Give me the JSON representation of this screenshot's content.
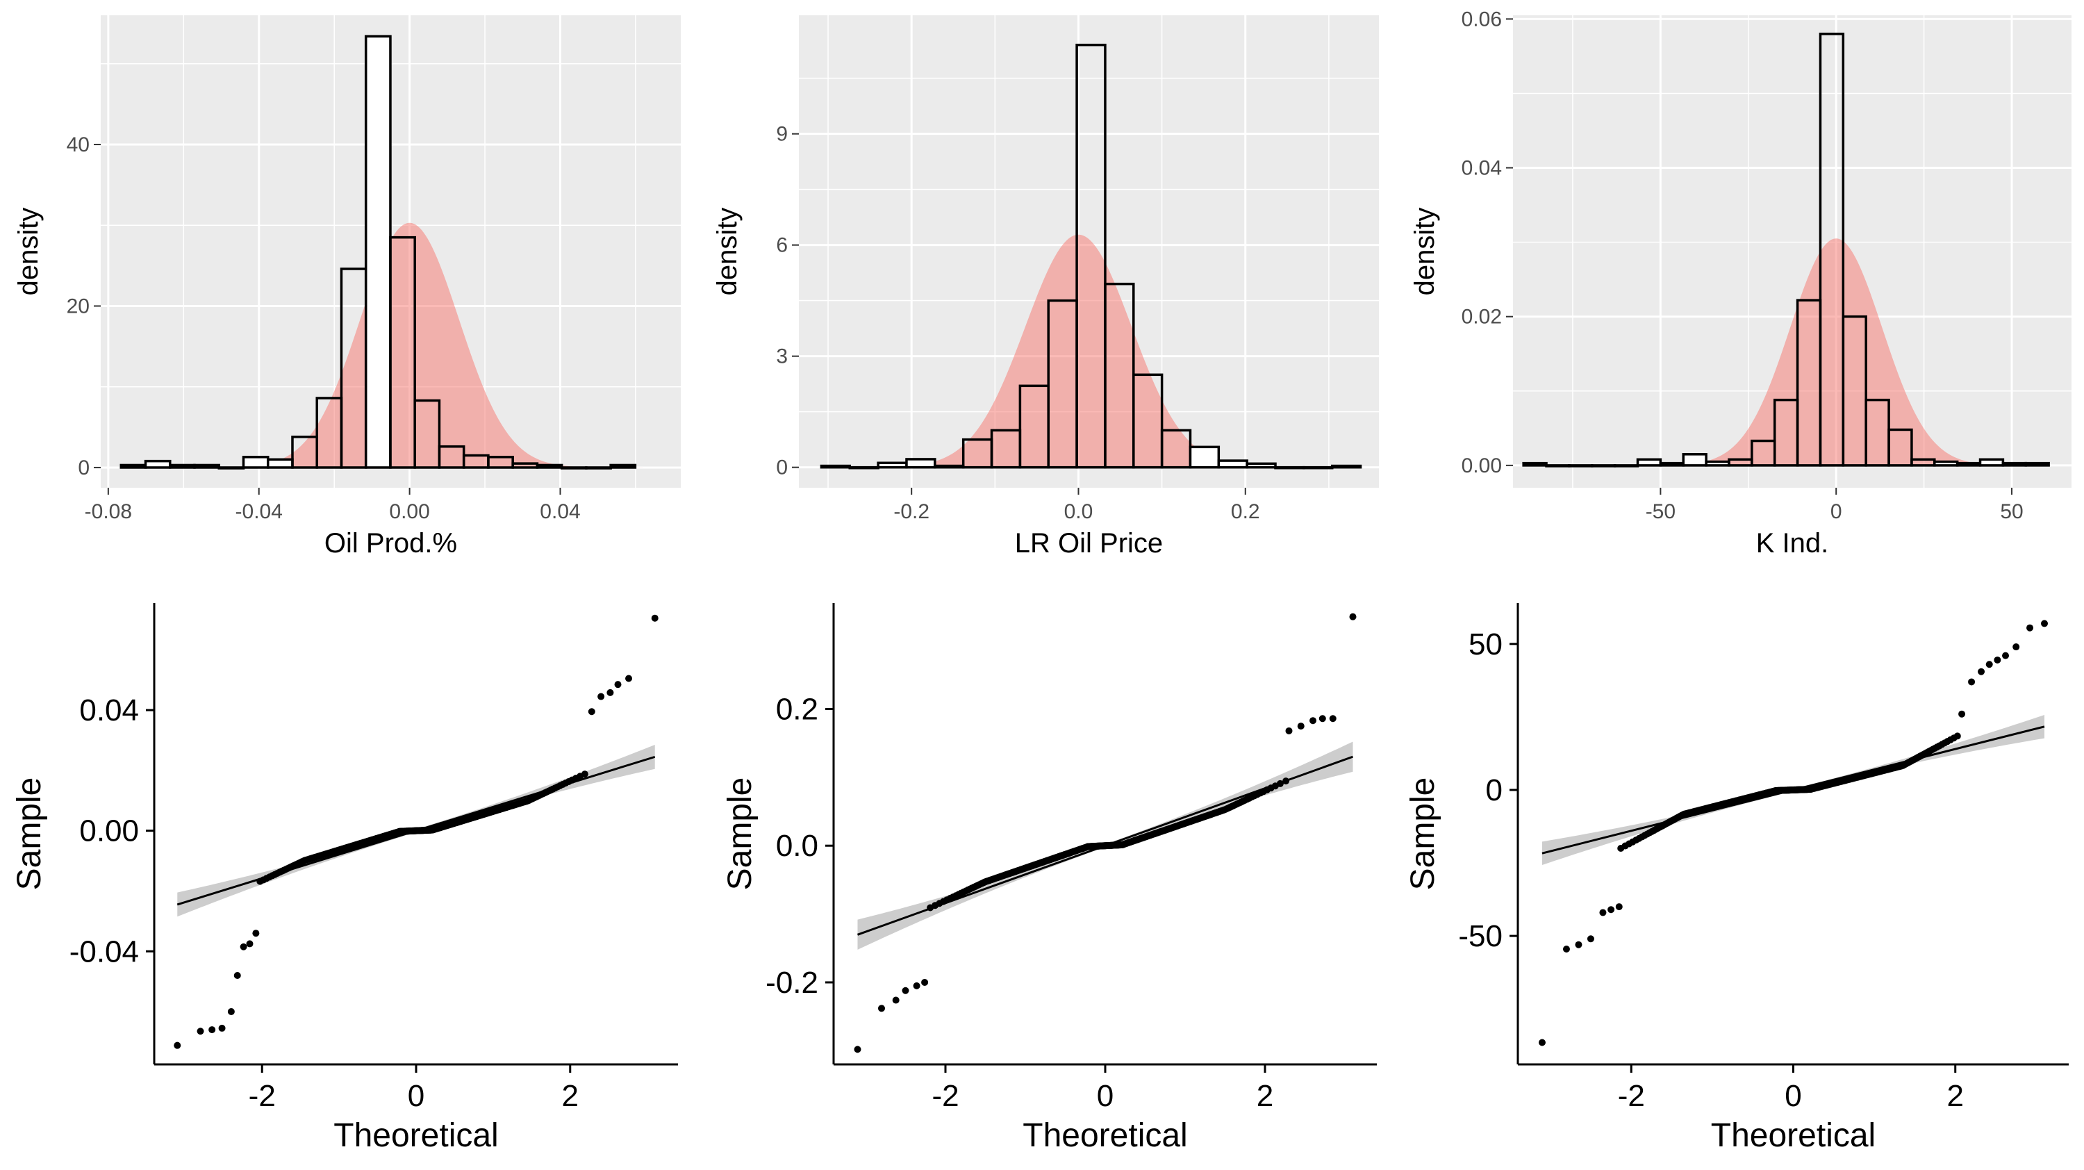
{
  "colors": {
    "panel_bg": "#ebebeb",
    "grid": "#ffffff",
    "density_fill": "#f8766d",
    "bar_fill_white": "#ffffff",
    "bar_fill_pink": "#fcaaaa",
    "bar_stroke": "#000000",
    "point": "#000000",
    "ribbon": "#c4c4c4",
    "axis_text": "#4d4d4d"
  },
  "chart_data": [
    {
      "type": "bar",
      "subtype": "histogram-with-density",
      "xlabel": "Oil Prod.%",
      "ylabel": "density",
      "xlim": [
        -0.082,
        0.072
      ],
      "ylim": [
        -2.5,
        56
      ],
      "xticks": [
        -0.08,
        -0.04,
        0.0,
        0.04
      ],
      "xtick_labels": [
        "-0.08",
        "-0.04",
        "0.00",
        "0.04"
      ],
      "yticks": [
        0,
        20,
        40
      ],
      "ytick_labels": [
        "0",
        "20",
        "40"
      ],
      "minor_xgrid": [
        -0.06,
        -0.02,
        0.02,
        0.06
      ],
      "minor_ygrid": [
        10,
        30,
        50
      ],
      "bin_width": 0.0065,
      "bins": [
        {
          "x0": -0.0766,
          "value": 0.3
        },
        {
          "x0": -0.0701,
          "value": 0.8
        },
        {
          "x0": -0.0636,
          "value": 0.3
        },
        {
          "x0": -0.0571,
          "value": 0.3
        },
        {
          "x0": -0.0506,
          "value": 0.0
        },
        {
          "x0": -0.0441,
          "value": 1.3
        },
        {
          "x0": -0.0376,
          "value": 1.0
        },
        {
          "x0": -0.0311,
          "value": 3.8
        },
        {
          "x0": -0.0246,
          "value": 8.6
        },
        {
          "x0": -0.0181,
          "value": 24.6
        },
        {
          "x0": -0.0116,
          "value": 53.4
        },
        {
          "x0": -0.0051,
          "value": 28.5
        },
        {
          "x0": 0.0014,
          "value": 8.3
        },
        {
          "x0": 0.0079,
          "value": 2.6
        },
        {
          "x0": 0.0144,
          "value": 1.5
        },
        {
          "x0": 0.0209,
          "value": 1.3
        },
        {
          "x0": 0.0274,
          "value": 0.5
        },
        {
          "x0": 0.0339,
          "value": 0.3
        },
        {
          "x0": 0.0404,
          "value": 0.0
        },
        {
          "x0": 0.0469,
          "value": 0.0
        },
        {
          "x0": 0.0534,
          "value": 0.3
        }
      ],
      "density": {
        "mean": 0.0,
        "sd": 0.0131,
        "peak": 30.3
      }
    },
    {
      "type": "bar",
      "subtype": "histogram-with-density",
      "xlabel": "LR Oil Price",
      "ylabel": "density",
      "xlim": [
        -0.335,
        0.36
      ],
      "ylim": [
        -0.55,
        12.2
      ],
      "xticks": [
        -0.2,
        0.0,
        0.2
      ],
      "xtick_labels": [
        "-0.2",
        "0.0",
        "0.2"
      ],
      "yticks": [
        0,
        3,
        6,
        9
      ],
      "ytick_labels": [
        "0",
        "3",
        "6",
        "9"
      ],
      "minor_xgrid": [
        -0.3,
        -0.1,
        0.1,
        0.3
      ],
      "minor_ygrid": [
        1.5,
        4.5,
        7.5,
        10.5
      ],
      "bin_width": 0.034,
      "bins": [
        {
          "x0": -0.308,
          "value": 0.04
        },
        {
          "x0": -0.274,
          "value": 0.0
        },
        {
          "x0": -0.24,
          "value": 0.12
        },
        {
          "x0": -0.206,
          "value": 0.22
        },
        {
          "x0": -0.172,
          "value": 0.04
        },
        {
          "x0": -0.138,
          "value": 0.75
        },
        {
          "x0": -0.104,
          "value": 1.0
        },
        {
          "x0": -0.07,
          "value": 2.2
        },
        {
          "x0": -0.036,
          "value": 4.5
        },
        {
          "x0": -0.002,
          "value": 11.4
        },
        {
          "x0": 0.032,
          "value": 4.95
        },
        {
          "x0": 0.066,
          "value": 2.5
        },
        {
          "x0": 0.1,
          "value": 1.0
        },
        {
          "x0": 0.134,
          "value": 0.55
        },
        {
          "x0": 0.168,
          "value": 0.18
        },
        {
          "x0": 0.202,
          "value": 0.1
        },
        {
          "x0": 0.236,
          "value": 0.0
        },
        {
          "x0": 0.27,
          "value": 0.0
        },
        {
          "x0": 0.304,
          "value": 0.04
        }
      ],
      "density": {
        "mean": 0.0,
        "sd": 0.0635,
        "peak": 6.28
      }
    },
    {
      "type": "bar",
      "subtype": "histogram-with-density",
      "xlabel": "K Ind.",
      "ylabel": "density",
      "xlim": [
        -92,
        67
      ],
      "ylim": [
        -0.003,
        0.0605
      ],
      "xticks": [
        -50,
        0,
        50
      ],
      "xtick_labels": [
        "-50",
        "0",
        "50"
      ],
      "yticks": [
        0.0,
        0.02,
        0.04,
        0.06
      ],
      "ytick_labels": [
        "0.00",
        "0.02",
        "0.04",
        "0.06"
      ],
      "minor_xgrid": [
        -75,
        -25,
        25
      ],
      "minor_ygrid": [
        0.01,
        0.03,
        0.05
      ],
      "bin_width": 6.5,
      "bins": [
        {
          "x0": -89.0,
          "value": 0.0003
        },
        {
          "x0": -82.5,
          "value": 0.0
        },
        {
          "x0": -76.0,
          "value": 0.0
        },
        {
          "x0": -69.5,
          "value": 0.0
        },
        {
          "x0": -63.0,
          "value": 0.0
        },
        {
          "x0": -56.5,
          "value": 0.0008
        },
        {
          "x0": -50.0,
          "value": 0.0003
        },
        {
          "x0": -43.5,
          "value": 0.0015
        },
        {
          "x0": -37.0,
          "value": 0.0005
        },
        {
          "x0": -30.5,
          "value": 0.0008
        },
        {
          "x0": -24.0,
          "value": 0.0033
        },
        {
          "x0": -17.5,
          "value": 0.0088
        },
        {
          "x0": -11.0,
          "value": 0.0222
        },
        {
          "x0": -4.5,
          "value": 0.058
        },
        {
          "x0": 2.0,
          "value": 0.02
        },
        {
          "x0": 8.5,
          "value": 0.0088
        },
        {
          "x0": 15.0,
          "value": 0.0048
        },
        {
          "x0": 21.5,
          "value": 0.0008
        },
        {
          "x0": 28.0,
          "value": 0.0005
        },
        {
          "x0": 34.5,
          "value": 0.0003
        },
        {
          "x0": 41.0,
          "value": 0.0008
        },
        {
          "x0": 47.5,
          "value": 0.0003
        },
        {
          "x0": 54.0,
          "value": 0.0003
        }
      ],
      "density": {
        "mean": 0.0,
        "sd": 13.1,
        "peak": 0.0305
      }
    },
    {
      "type": "scatter",
      "subtype": "qq-plot",
      "xlabel": "Theoretical",
      "ylabel": "Sample",
      "xlim": [
        -3.4,
        3.4
      ],
      "ylim": [
        -0.0775,
        0.0755
      ],
      "xticks": [
        -2,
        0,
        2
      ],
      "xtick_labels": [
        "-2",
        "0",
        "2"
      ],
      "yticks": [
        -0.04,
        0.0,
        0.04
      ],
      "ytick_labels": [
        "-0.04",
        "0.00",
        "0.04"
      ],
      "qq_line": {
        "intercept": 0.0,
        "slope": 0.0079
      },
      "ribbon_halfwidth": {
        "center": 0.0005,
        "edge": 0.004
      },
      "sample_curve": {
        "scale": 0.0078,
        "outer_scale": 0.012,
        "knee": 1.45
      },
      "tail_points": [
        {
          "x": -3.1,
          "y": -0.0712
        },
        {
          "x": -2.8,
          "y": -0.0665
        },
        {
          "x": -2.65,
          "y": -0.066
        },
        {
          "x": -2.52,
          "y": -0.0655
        },
        {
          "x": -2.4,
          "y": -0.06
        },
        {
          "x": -2.32,
          "y": -0.048
        },
        {
          "x": -2.24,
          "y": -0.0385
        },
        {
          "x": -2.16,
          "y": -0.0375
        },
        {
          "x": -2.08,
          "y": -0.034
        },
        {
          "x": 2.28,
          "y": 0.0395
        },
        {
          "x": 2.4,
          "y": 0.0445
        },
        {
          "x": 2.52,
          "y": 0.0458
        },
        {
          "x": 2.62,
          "y": 0.0485
        },
        {
          "x": 2.76,
          "y": 0.0505
        },
        {
          "x": 3.1,
          "y": 0.0705
        }
      ]
    },
    {
      "type": "scatter",
      "subtype": "qq-plot",
      "xlabel": "Theoretical",
      "ylabel": "Sample",
      "xlim": [
        -3.4,
        3.4
      ],
      "ylim": [
        -0.32,
        0.355
      ],
      "xticks": [
        -2,
        0,
        2
      ],
      "xtick_labels": [
        "-2",
        "0",
        "2"
      ],
      "yticks": [
        -0.2,
        0.0,
        0.2
      ],
      "ytick_labels": [
        "-0.2",
        "0.0",
        "0.2"
      ],
      "qq_line": {
        "intercept": 0.0,
        "slope": 0.042
      },
      "ribbon_halfwidth": {
        "center": 0.002,
        "edge": 0.022
      },
      "sample_curve": {
        "scale": 0.04,
        "outer_scale": 0.055,
        "knee": 1.5
      },
      "tail_points": [
        {
          "x": -3.1,
          "y": -0.298
        },
        {
          "x": -2.8,
          "y": -0.238
        },
        {
          "x": -2.62,
          "y": -0.226
        },
        {
          "x": -2.5,
          "y": -0.212
        },
        {
          "x": -2.36,
          "y": -0.205
        },
        {
          "x": -2.26,
          "y": -0.2
        },
        {
          "x": 2.3,
          "y": 0.168
        },
        {
          "x": 2.45,
          "y": 0.175
        },
        {
          "x": 2.6,
          "y": 0.183
        },
        {
          "x": 2.72,
          "y": 0.186
        },
        {
          "x": 2.85,
          "y": 0.186
        },
        {
          "x": 3.1,
          "y": 0.335
        }
      ]
    },
    {
      "type": "scatter",
      "subtype": "qq-plot",
      "xlabel": "Theoretical",
      "ylabel": "Sample",
      "xlim": [
        -3.4,
        3.4
      ],
      "ylim": [
        -94,
        64
      ],
      "xticks": [
        -2,
        0,
        2
      ],
      "xtick_labels": [
        "-2",
        "0",
        "2"
      ],
      "yticks": [
        -50,
        0,
        50
      ],
      "ytick_labels": [
        "-50",
        "0",
        "50"
      ],
      "qq_line": {
        "intercept": 0.0,
        "slope": 7.0
      },
      "ribbon_halfwidth": {
        "center": 0.4,
        "edge": 4.0
      },
      "sample_curve": {
        "scale": 7.1,
        "outer_scale": 15.0,
        "knee": 1.35
      },
      "tail_points": [
        {
          "x": -3.1,
          "y": -86.5
        },
        {
          "x": -2.8,
          "y": -54.5
        },
        {
          "x": -2.65,
          "y": -53.0
        },
        {
          "x": -2.5,
          "y": -51.0
        },
        {
          "x": -2.35,
          "y": -42.0
        },
        {
          "x": -2.25,
          "y": -41.0
        },
        {
          "x": -2.15,
          "y": -40.0
        },
        {
          "x": 2.08,
          "y": 26.0
        },
        {
          "x": 2.2,
          "y": 37.0
        },
        {
          "x": 2.32,
          "y": 40.5
        },
        {
          "x": 2.42,
          "y": 43.0
        },
        {
          "x": 2.52,
          "y": 44.5
        },
        {
          "x": 2.62,
          "y": 46.0
        },
        {
          "x": 2.75,
          "y": 49.0
        },
        {
          "x": 2.92,
          "y": 55.5
        },
        {
          "x": 3.1,
          "y": 57.0
        }
      ]
    }
  ]
}
